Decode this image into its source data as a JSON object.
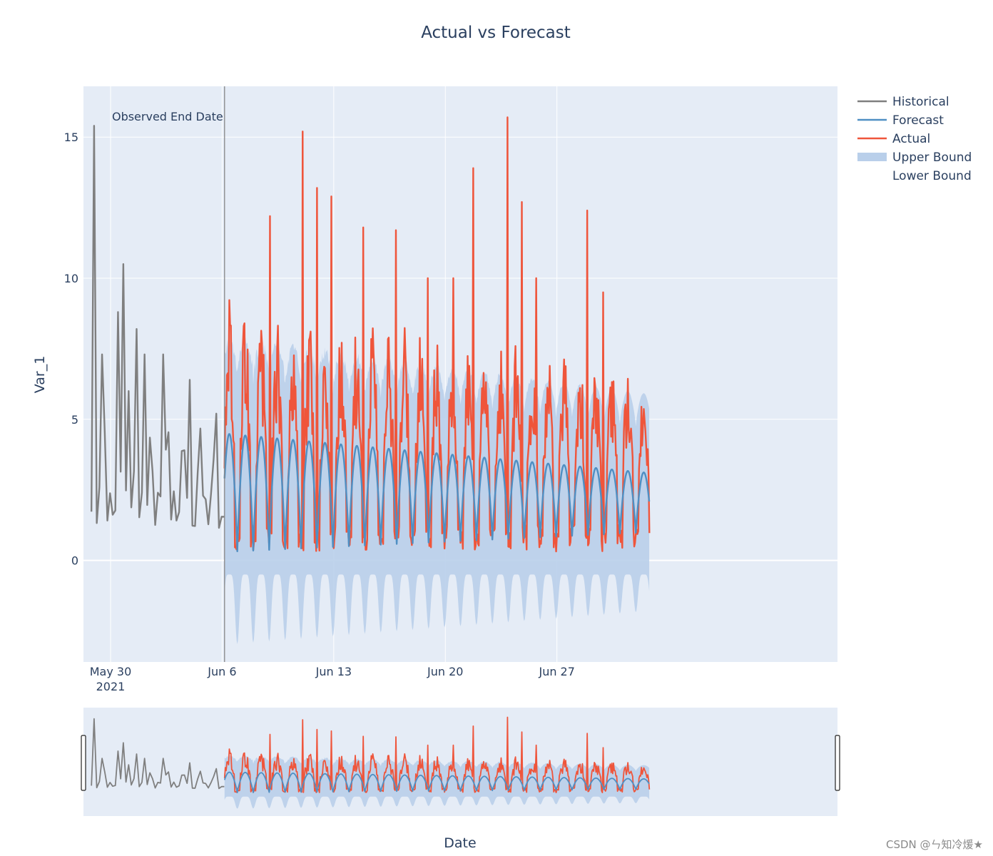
{
  "chart_data": {
    "type": "line",
    "title": "Actual vs Forecast",
    "xlabel": "Date",
    "ylabel": "Var_1",
    "x_range_days": [
      -1.7,
      45.6
    ],
    "x_start_date": "2021-05-30",
    "ylim": [
      -3.6,
      16.8
    ],
    "yticks": [
      0,
      5,
      10,
      15
    ],
    "xticks": [
      {
        "day": 0,
        "label": "May 30",
        "sublabel": "2021"
      },
      {
        "day": 7,
        "label": "Jun 6",
        "sublabel": ""
      },
      {
        "day": 14,
        "label": "Jun 13",
        "sublabel": ""
      },
      {
        "day": 21,
        "label": "Jun 20",
        "sublabel": ""
      },
      {
        "day": 28,
        "label": "Jun 27",
        "sublabel": ""
      }
    ],
    "observed_end_day": 7.15,
    "forecast_end_day": 33.8,
    "annotation": "Observed End Date",
    "legend_position": "top-right",
    "legend": [
      {
        "name": "Historical",
        "color": "#7f7f7f",
        "kind": "line"
      },
      {
        "name": "Forecast",
        "color": "#4f8fc3",
        "kind": "line"
      },
      {
        "name": "Actual",
        "color": "#ef553b",
        "kind": "line"
      },
      {
        "name": "Upper Bound",
        "color": "#b9cfea",
        "kind": "band"
      },
      {
        "name": "Lower Bound",
        "color": "#ffffff",
        "kind": "none"
      }
    ],
    "series": [
      {
        "name": "Historical",
        "color": "#7f7f7f",
        "points_per_day": 6,
        "start_day": -1.2,
        "peak_days": [
          -1.1,
          -0.6,
          0.4,
          0.8,
          1.2,
          1.6,
          2.1,
          3.3,
          5.0,
          6.6
        ],
        "peak_values": [
          15.4,
          7.3,
          8.8,
          10.5,
          6.0,
          8.2,
          7.3,
          7.3,
          6.4,
          5.2
        ],
        "typical_range": [
          0.3,
          5.0
        ]
      },
      {
        "name": "Forecast",
        "color": "#4f8fc3",
        "start_day": 7.15,
        "end_day": 33.8,
        "daily_max_start": 4.5,
        "daily_max_end": 3.1,
        "daily_min": [
          0.3,
          1.0
        ]
      },
      {
        "name": "Actual",
        "color": "#ef553b",
        "start_day": 7.15,
        "end_day": 33.8,
        "peaks": [
          {
            "day": 10.0,
            "value": 12.2
          },
          {
            "day": 12.05,
            "value": 15.2
          },
          {
            "day": 12.95,
            "value": 13.2
          },
          {
            "day": 13.85,
            "value": 12.9
          },
          {
            "day": 15.85,
            "value": 11.8
          },
          {
            "day": 17.9,
            "value": 11.7
          },
          {
            "day": 19.9,
            "value": 10.0
          },
          {
            "day": 21.5,
            "value": 10.0
          },
          {
            "day": 22.75,
            "value": 13.9
          },
          {
            "day": 24.9,
            "value": 15.7
          },
          {
            "day": 25.8,
            "value": 12.7
          },
          {
            "day": 26.7,
            "value": 10.0
          },
          {
            "day": 29.9,
            "value": 12.4
          },
          {
            "day": 30.9,
            "value": 9.5
          }
        ],
        "typical_range": [
          0.3,
          8.0
        ]
      },
      {
        "name": "Upper Bound",
        "color": "#b9cfea",
        "upper_range": [
          5.5,
          7.5
        ]
      },
      {
        "name": "Lower Bound",
        "color": "#b9cfea",
        "lower_range": [
          -2.8,
          -0.3
        ]
      }
    ]
  },
  "watermark": "CSDN @ㄣ知冷煖★"
}
